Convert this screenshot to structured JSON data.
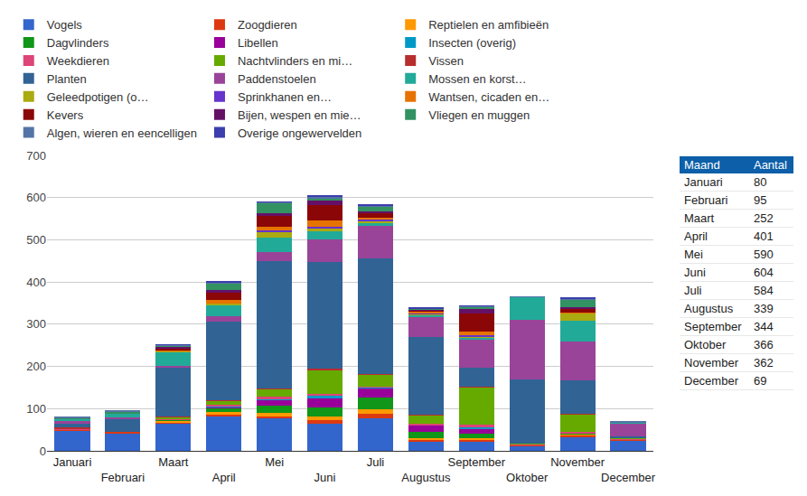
{
  "chart_data": {
    "type": "bar",
    "stacked": true,
    "grid": true,
    "legend": "top",
    "categories": [
      "Januari",
      "Februari",
      "Maart",
      "April",
      "Mei",
      "Juni",
      "Juli",
      "Augustus",
      "September",
      "Oktober",
      "November",
      "December"
    ],
    "ylim": [
      0,
      700
    ],
    "yticks": [
      0,
      100,
      200,
      300,
      400,
      500,
      600,
      700
    ],
    "series": [
      {
        "name": "Vogels",
        "color": "#3366cc",
        "values": [
          48,
          42,
          65,
          82,
          77,
          65,
          78,
          22,
          22,
          12,
          32,
          25
        ]
      },
      {
        "name": "Zoogdieren",
        "color": "#dc3912",
        "values": [
          2,
          3,
          3,
          5,
          5,
          8,
          10,
          5,
          5,
          2,
          5,
          2
        ]
      },
      {
        "name": "Reptielen en amfibieën",
        "color": "#ff9900",
        "values": [
          0,
          0,
          3,
          4,
          8,
          8,
          10,
          2,
          2,
          0,
          2,
          0
        ]
      },
      {
        "name": "Dagvlinders",
        "color": "#109618",
        "values": [
          0,
          0,
          2,
          10,
          18,
          22,
          28,
          15,
          12,
          0,
          2,
          0
        ]
      },
      {
        "name": "Libellen",
        "color": "#990099",
        "values": [
          0,
          0,
          0,
          3,
          12,
          22,
          22,
          16,
          12,
          0,
          0,
          0
        ]
      },
      {
        "name": "Insecten (overig)",
        "color": "#0099c6",
        "values": [
          0,
          0,
          1,
          3,
          3,
          5,
          2,
          2,
          3,
          0,
          1,
          0
        ]
      },
      {
        "name": "Weekdieren",
        "color": "#dd4477",
        "values": [
          1,
          0,
          2,
          3,
          5,
          5,
          3,
          2,
          6,
          1,
          2,
          1
        ]
      },
      {
        "name": "Nachtvlinders en mi…",
        "color": "#66aa00",
        "values": [
          0,
          0,
          4,
          8,
          18,
          57,
          27,
          20,
          88,
          2,
          42,
          2
        ]
      },
      {
        "name": "Vissen",
        "color": "#b82e2e",
        "values": [
          5,
          0,
          1,
          1,
          2,
          3,
          2,
          2,
          2,
          0,
          1,
          0
        ]
      },
      {
        "name": "Planten",
        "color": "#316395",
        "values": [
          8,
          32,
          115,
          188,
          302,
          252,
          273,
          184,
          44,
          153,
          81,
          5
        ]
      },
      {
        "name": "Paddenstoelen",
        "color": "#994499",
        "values": [
          6,
          3,
          6,
          12,
          20,
          53,
          78,
          47,
          68,
          140,
          92,
          30
        ]
      },
      {
        "name": "Mossen en korst…",
        "color": "#22aa99",
        "values": [
          6,
          8,
          32,
          25,
          35,
          20,
          8,
          5,
          5,
          54,
          48,
          2
        ]
      },
      {
        "name": "Geleedpotigen (o…",
        "color": "#aaaa11",
        "values": [
          0,
          0,
          2,
          5,
          15,
          8,
          3,
          3,
          2,
          0,
          18,
          0
        ]
      },
      {
        "name": "Sprinkhanen en…",
        "color": "#6633cc",
        "values": [
          0,
          0,
          0,
          0,
          2,
          3,
          4,
          2,
          2,
          0,
          0,
          0
        ]
      },
      {
        "name": "Wantsen, cicaden en…",
        "color": "#e67300",
        "values": [
          0,
          0,
          2,
          8,
          8,
          14,
          5,
          3,
          9,
          0,
          2,
          0
        ]
      },
      {
        "name": "Kevers",
        "color": "#8b0707",
        "values": [
          0,
          0,
          6,
          18,
          27,
          37,
          10,
          2,
          43,
          0,
          10,
          0
        ]
      },
      {
        "name": "Bijen, wespen en mie…",
        "color": "#651067",
        "values": [
          0,
          0,
          3,
          5,
          5,
          12,
          4,
          2,
          12,
          0,
          3,
          0
        ]
      },
      {
        "name": "Vliegen en muggen",
        "color": "#329262",
        "values": [
          2,
          5,
          3,
          18,
          25,
          3,
          10,
          3,
          4,
          0,
          18,
          0
        ]
      },
      {
        "name": "Algen, wieren en eencelligen",
        "color": "#5574a6",
        "values": [
          2,
          2,
          1,
          2,
          2,
          5,
          5,
          1,
          2,
          2,
          2,
          2
        ]
      },
      {
        "name": "Overige ongewervelden",
        "color": "#3b3eac",
        "values": [
          0,
          0,
          1,
          1,
          1,
          2,
          2,
          1,
          1,
          0,
          1,
          0
        ]
      }
    ]
  },
  "table": {
    "header": [
      "Maand",
      "Aantal"
    ],
    "rows": [
      [
        "Januari",
        80
      ],
      [
        "Februari",
        95
      ],
      [
        "Maart",
        252
      ],
      [
        "April",
        401
      ],
      [
        "Mei",
        590
      ],
      [
        "Juni",
        604
      ],
      [
        "Juli",
        584
      ],
      [
        "Augustus",
        339
      ],
      [
        "September",
        344
      ],
      [
        "Oktober",
        366
      ],
      [
        "November",
        362
      ],
      [
        "December",
        69
      ]
    ]
  }
}
